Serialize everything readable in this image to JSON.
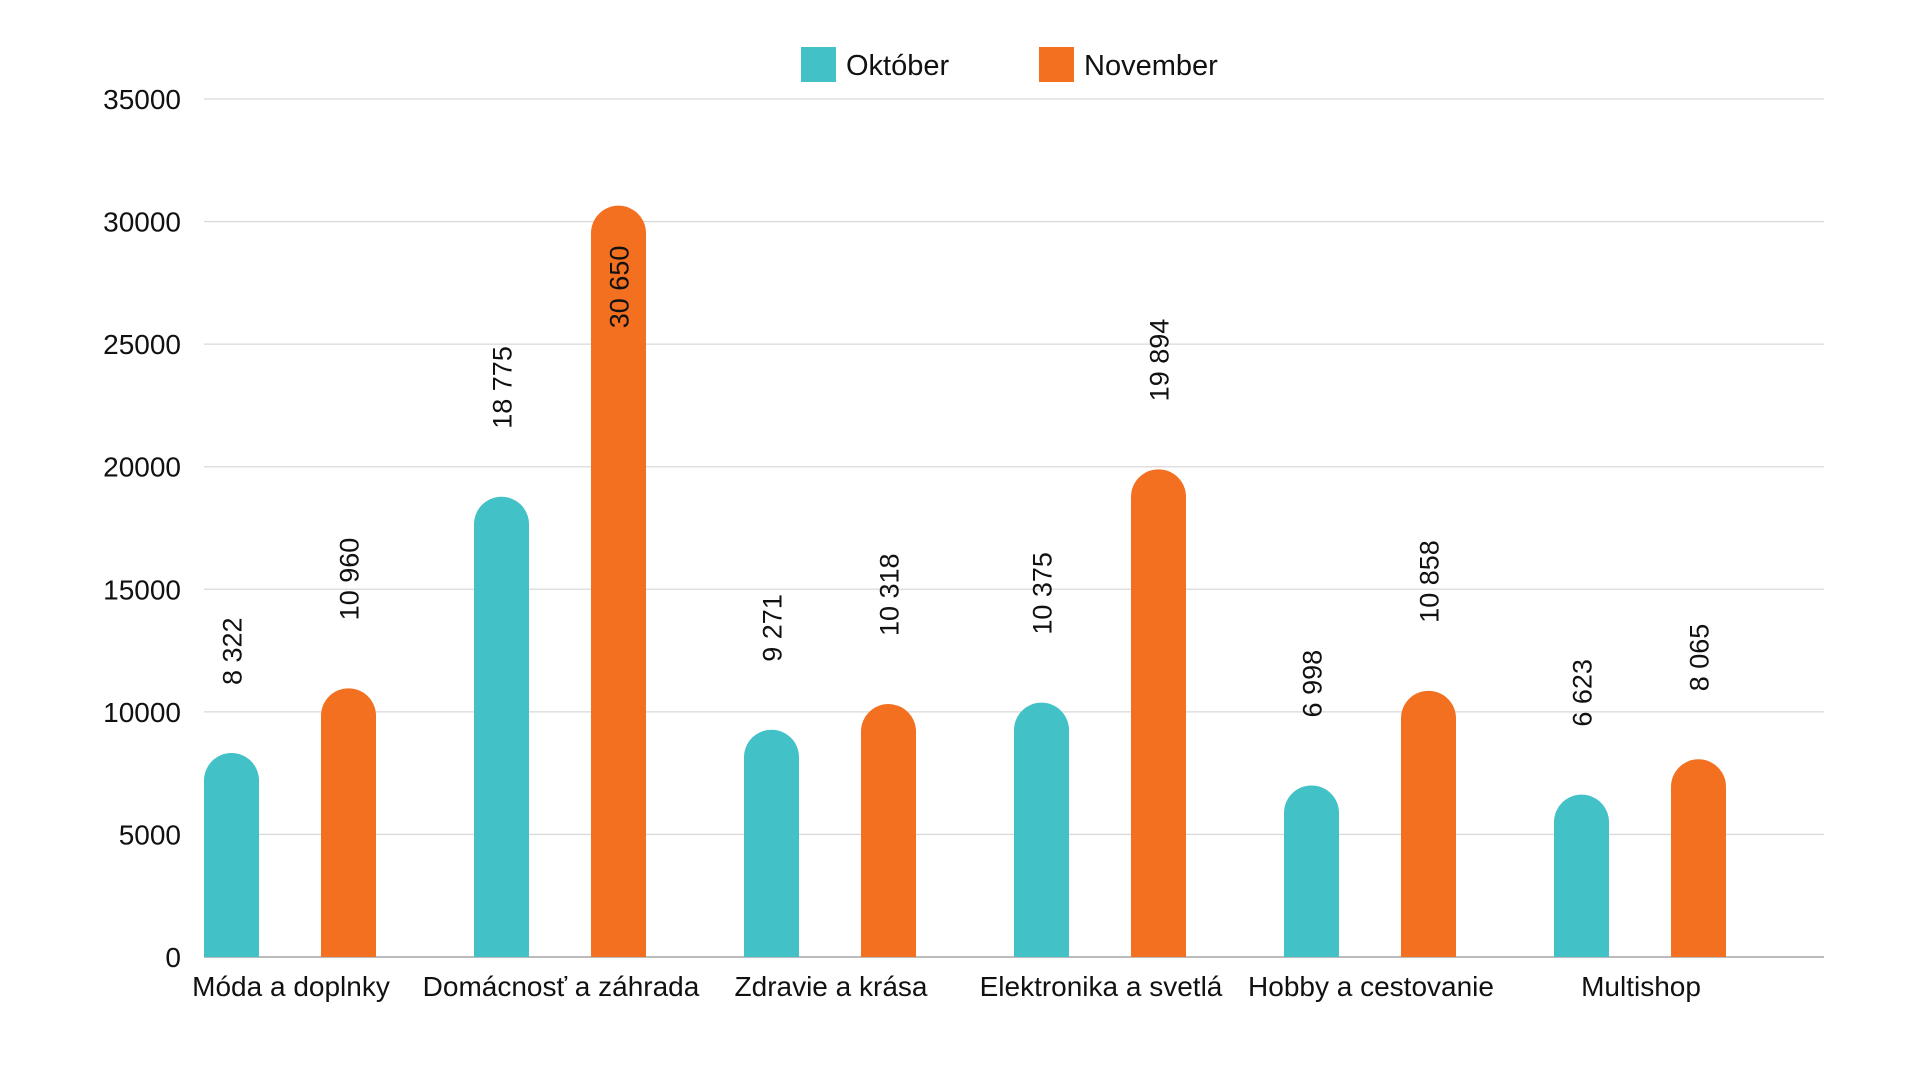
{
  "chart_data": {
    "type": "bar",
    "title": "",
    "xlabel": "",
    "ylabel": "",
    "ylim": [
      0,
      35000
    ],
    "yticks": [
      "0",
      "5000",
      "10000",
      "15000",
      "20000",
      "25000",
      "30000",
      "35000"
    ],
    "grid": true,
    "legend_position": "top-center",
    "categories": [
      "Móda a doplnky",
      "Domácnosť a záhrada",
      "Zdravie a krása",
      "Elektronika a svetlá",
      "Hobby a cestovanie",
      "Multishop"
    ],
    "series": [
      {
        "name": "Október",
        "color": "#42C1C6",
        "values": [
          8322,
          18775,
          9271,
          10375,
          6998,
          6623
        ],
        "labels": [
          "8 322",
          "18 775",
          "9 271",
          "10 375",
          "6 998",
          "6 623"
        ]
      },
      {
        "name": "November",
        "color": "#F37021",
        "values": [
          10960,
          30650,
          10318,
          19894,
          10858,
          8065
        ],
        "labels": [
          "10 960",
          "30 650",
          "10 318",
          "19 894",
          "10 858",
          "8 065"
        ]
      }
    ]
  }
}
